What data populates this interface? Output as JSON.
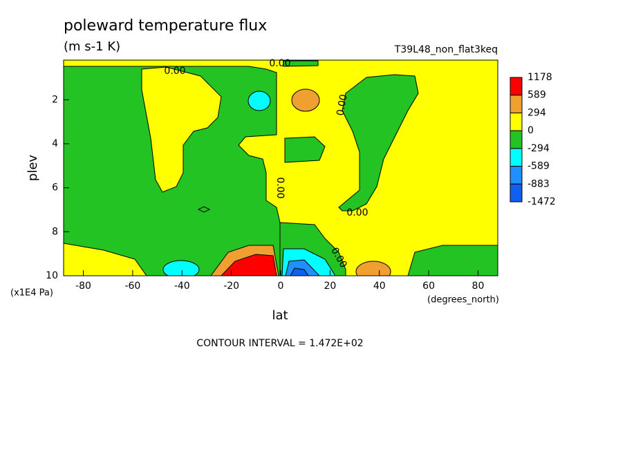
{
  "chart_data": {
    "type": "contour",
    "title": "poleward temperature flux",
    "units": "(m s-1 K)",
    "subtitle": "T39L48_non_flat3keq",
    "x_label": "lat",
    "x_units": "(degrees_north)",
    "y_label": "plev",
    "y_units": "(x1E4 Pa)",
    "footnote": "CONTOUR INTERVAL = 1.472E+02",
    "contour_label": "0.00",
    "xlim": [
      -88,
      88
    ],
    "xticks": [
      -80,
      -60,
      -40,
      -20,
      0,
      20,
      40,
      60,
      80
    ],
    "ylim": [
      10,
      0.2
    ],
    "yticks": [
      2,
      4,
      6,
      8,
      10
    ],
    "levels": [
      1178,
      589,
      294,
      0,
      -294,
      -589,
      -883,
      -1472
    ],
    "colors": [
      "#ff0000",
      "#f0a030",
      "#ffff00",
      "#22c322",
      "#00ffff",
      "#1e90ff",
      "#1060f0"
    ]
  }
}
